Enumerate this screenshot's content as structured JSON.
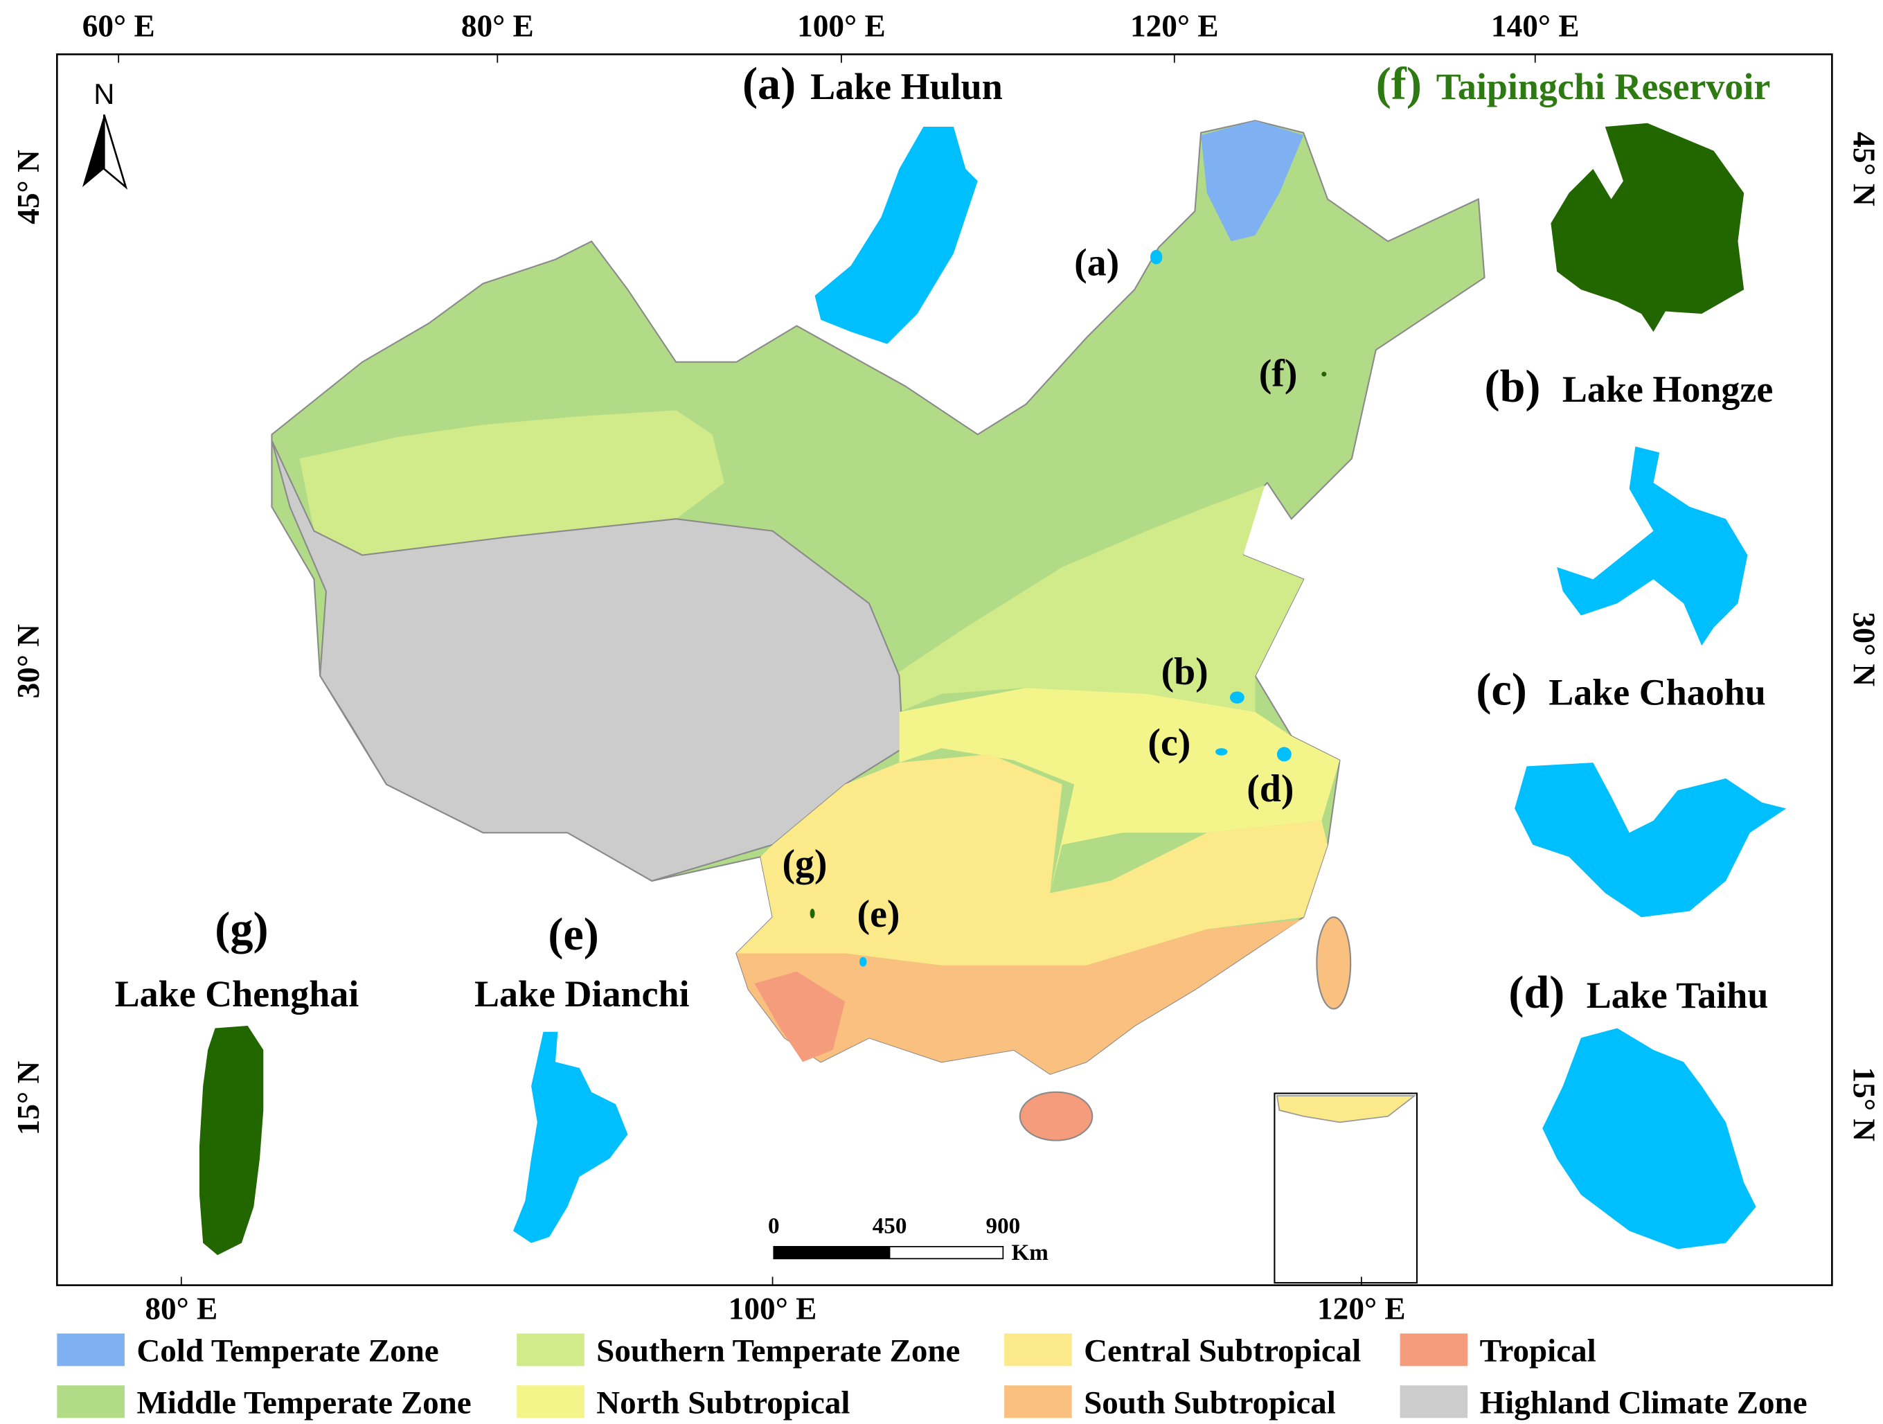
{
  "axes": {
    "top": [
      "60° E",
      "80° E",
      "100° E",
      "120° E",
      "140° E"
    ],
    "bottom": [
      "80° E",
      "100° E",
      "120° E"
    ],
    "left": [
      "45° N",
      "30° N",
      "15° N"
    ],
    "right": [
      "45° N",
      "30° N",
      "15° N"
    ]
  },
  "north_arrow": "N",
  "insets": [
    {
      "label": "(a)",
      "name": "Lake Hulun",
      "color": "#000000",
      "shape_color": "#00bfff"
    },
    {
      "label": "(b)",
      "name": "Lake Hongze",
      "color": "#000000",
      "shape_color": "#00bfff"
    },
    {
      "label": "(c)",
      "name": "Lake Chaohu",
      "color": "#000000",
      "shape_color": "#00bfff"
    },
    {
      "label": "(d)",
      "name": "Lake Taihu",
      "color": "#000000",
      "shape_color": "#00bfff"
    },
    {
      "label": "(e)",
      "name": "Lake Dianchi",
      "color": "#000000",
      "shape_color": "#00bfff"
    },
    {
      "label": "(f)",
      "name": "Taipingchi Reservoir",
      "color": "#2e7a12",
      "shape_color": "#226600"
    },
    {
      "label": "(g)",
      "name": "Lake Chenghai",
      "color": "#2e7a12",
      "shape_color": "#226600"
    }
  ],
  "scale_bar": {
    "ticks": [
      "0",
      "450",
      "900"
    ],
    "unit": "Km"
  },
  "legend": [
    {
      "name": "Cold Temperate Zone",
      "color": "#7fb0f2"
    },
    {
      "name": "Southern Temperate Zone",
      "color": "#d2eb8a"
    },
    {
      "name": "Central Subtropical",
      "color": "#fbe98a"
    },
    {
      "name": "Tropical",
      "color": "#f59c7c"
    },
    {
      "name": "Middle Temperate Zone",
      "color": "#b2db88"
    },
    {
      "name": "North Subtropical",
      "color": "#f3f48a"
    },
    {
      "name": "South Subtropical",
      "color": "#f9c07f"
    },
    {
      "name": "Highland Climate Zone",
      "color": "#cccccc"
    }
  ]
}
